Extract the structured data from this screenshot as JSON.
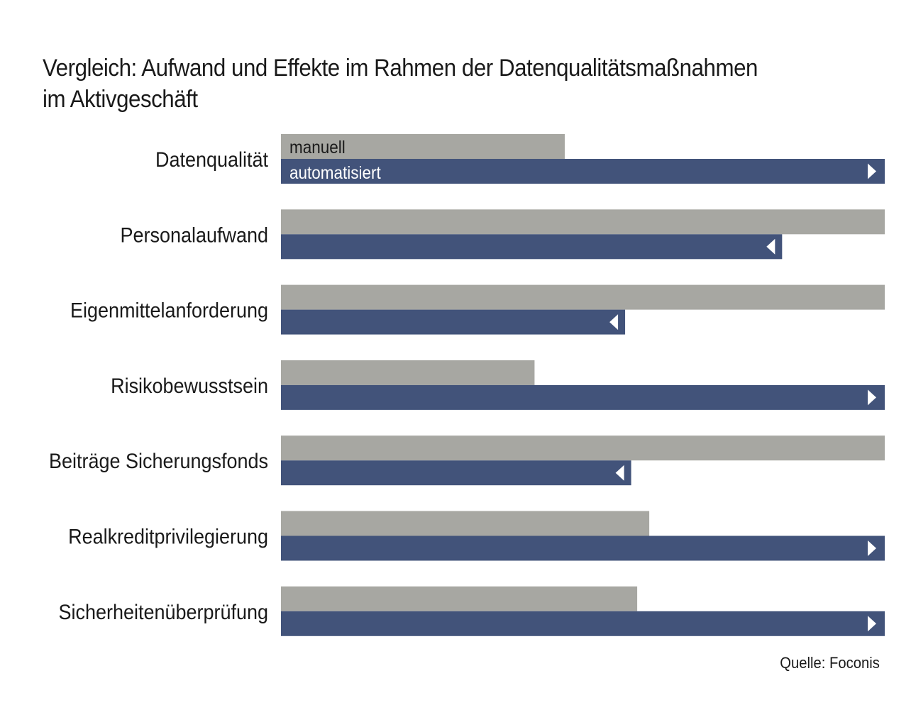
{
  "title_line1": "Vergleich: Aufwand und Effekte im Rahmen der Datenqualitätsmaßnahmen",
  "title_line2": "im Aktivgeschäft",
  "source": "Quelle: Foconis",
  "colors": {
    "manual": "#a7a7a2",
    "automated": "#42537a",
    "text": "#1a1a1a",
    "bar_label_manual": "#1a1a1a",
    "bar_label_automated": "#ffffff",
    "marker": "#ffffff"
  },
  "chart_data": {
    "type": "bar",
    "orientation": "horizontal",
    "categories": [
      "Datenqualität",
      "Personalaufwand",
      "Eigenmittelanforderung",
      "Risikobewusstsein",
      "Beiträge Sicherungsfonds",
      "Realkreditprivilegierung",
      "Sicherheitenüberprüfung"
    ],
    "series": [
      {
        "name": "manuell",
        "values": [
          47,
          100,
          100,
          42,
          100,
          61,
          59
        ]
      },
      {
        "name": "automatisiert",
        "values": [
          100,
          83,
          57,
          100,
          58,
          100,
          100
        ],
        "markers": [
          "right",
          "left",
          "left",
          "right",
          "left",
          "right",
          "right"
        ]
      }
    ],
    "xlim": [
      0,
      100
    ],
    "grid": false,
    "legend": "inline labels inside first bar pair"
  }
}
